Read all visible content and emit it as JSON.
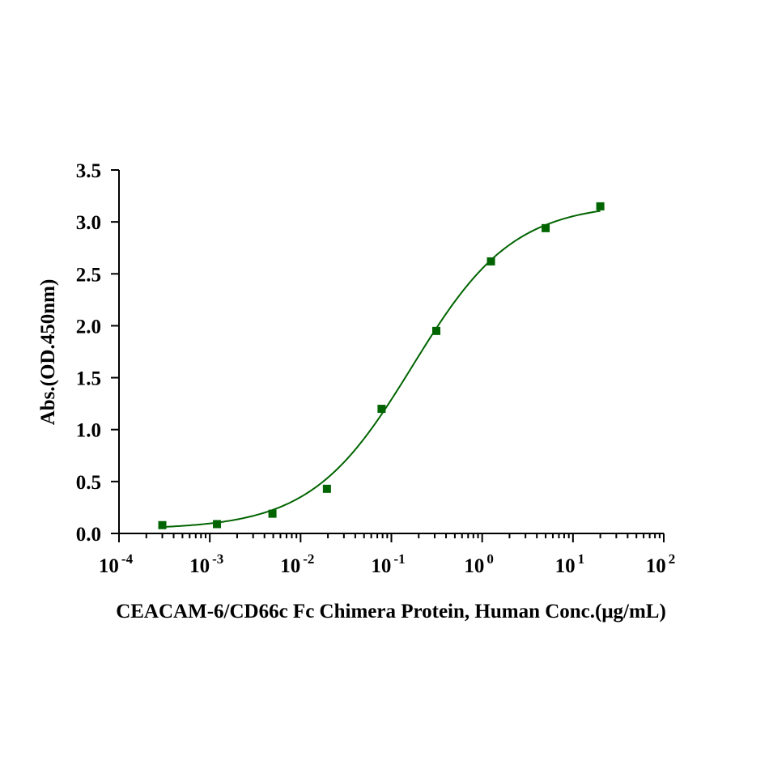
{
  "chart_data": {
    "type": "scatter",
    "xlabel": "CEACAM-6/CD66c Fc Chimera Protein, Human  Conc.(μg/mL)",
    "ylabel": "Abs.(OD.450nm)",
    "x_scale": "log",
    "xlim": [
      0.0001,
      100
    ],
    "ylim": [
      0,
      3.5
    ],
    "x_ticks": [
      0.0001,
      0.001,
      0.01,
      0.1,
      1,
      10,
      100
    ],
    "x_tick_base": "10",
    "x_tick_exponents": [
      "-4",
      "-3",
      "-2",
      "-1",
      "0",
      "1",
      "2"
    ],
    "y_ticks": [
      "0.0",
      "0.5",
      "1.0",
      "1.5",
      "2.0",
      "2.5",
      "3.0",
      "3.5"
    ],
    "grid": false,
    "legend": "none",
    "color": "#006400",
    "series": [
      {
        "x": [
          0.0003,
          0.0012,
          0.0049,
          0.0195,
          0.078,
          0.3125,
          1.25,
          5,
          20
        ],
        "y": [
          0.08,
          0.09,
          0.19,
          0.43,
          1.2,
          1.95,
          2.62,
          2.94,
          3.15
        ],
        "marker": "square"
      }
    ],
    "fit_curve": {
      "model": "4PL",
      "bottom": 0.04,
      "top": 3.18,
      "ec50": 0.17,
      "hill": 0.78
    }
  }
}
